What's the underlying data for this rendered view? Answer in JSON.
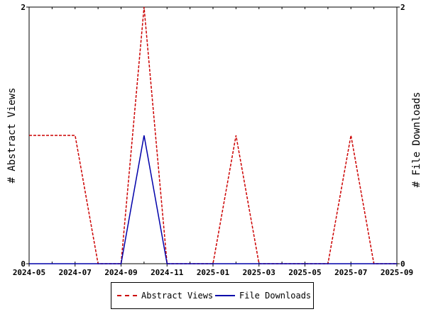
{
  "chart_data": {
    "type": "line",
    "xlabel": "",
    "ylabel_left": "# Abstract Views",
    "ylabel_right": "# File Downloads",
    "x_ticks": [
      "2024-05",
      "2024-07",
      "2024-09",
      "2024-11",
      "2025-01",
      "2025-03",
      "2025-05",
      "2025-07",
      "2025-09"
    ],
    "x_range": [
      "2024-05",
      "2025-09"
    ],
    "y_left_range": [
      0,
      2
    ],
    "y_right_range": [
      0,
      2
    ],
    "y_left_ticks": [
      "0",
      "2"
    ],
    "y_right_ticks": [
      "0",
      "2"
    ],
    "x": [
      "2024-05",
      "2024-06",
      "2024-07",
      "2024-08",
      "2024-09",
      "2024-10",
      "2024-11",
      "2024-12",
      "2025-01",
      "2025-02",
      "2025-03",
      "2025-04",
      "2025-05",
      "2025-06",
      "2025-07",
      "2025-08",
      "2025-09"
    ],
    "series": [
      {
        "name": "Abstract Views",
        "color": "#cc0000",
        "style": "dashed",
        "axis": "left",
        "values": [
          1,
          1,
          1,
          0,
          0,
          2,
          0,
          0,
          0,
          1,
          0,
          0,
          0,
          0,
          1,
          0,
          0
        ]
      },
      {
        "name": "File Downloads",
        "color": "#0000aa",
        "style": "solid",
        "axis": "right",
        "values": [
          0,
          0,
          0,
          0,
          0,
          1,
          0,
          0,
          0,
          0,
          0,
          0,
          0,
          0,
          0,
          0,
          0
        ]
      }
    ],
    "grid": false,
    "legend_position": "bottom-center"
  }
}
